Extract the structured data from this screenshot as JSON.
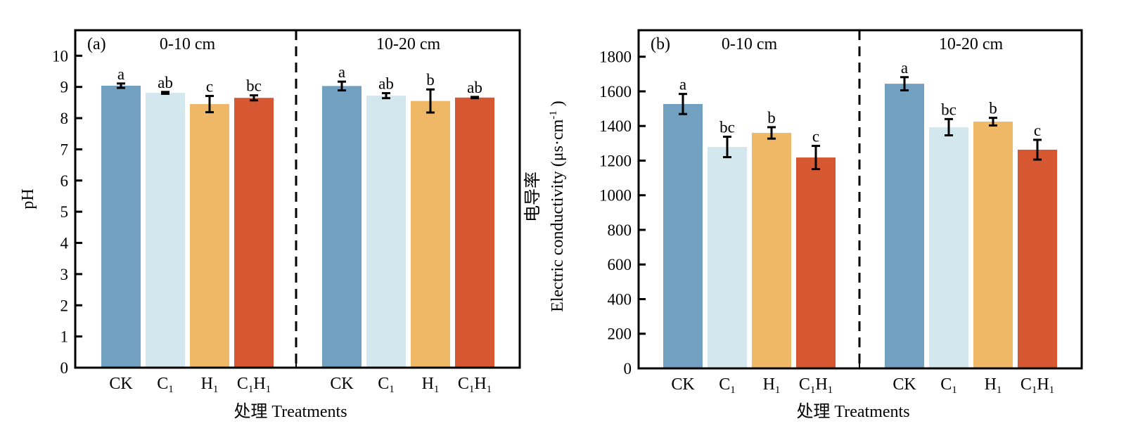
{
  "chart_data": [
    {
      "type": "bar",
      "panel_label": "(a)",
      "ylabel": "pH",
      "xlabel": "处理 Treatments",
      "ylim": [
        0,
        10
      ],
      "yticks": [
        0,
        1,
        2,
        3,
        4,
        5,
        6,
        7,
        8,
        9,
        10
      ],
      "grid": false,
      "categories": [
        {
          "main": "CK",
          "sub": "",
          "main2": "",
          "sub2": ""
        },
        {
          "main": "C",
          "sub": "1",
          "main2": "",
          "sub2": ""
        },
        {
          "main": "H",
          "sub": "1",
          "main2": "",
          "sub2": ""
        },
        {
          "main": "C",
          "sub": "1",
          "main2": "H",
          "sub2": "1"
        }
      ],
      "groups": [
        {
          "name": "0-10 cm",
          "values": [
            9.04,
            8.81,
            8.45,
            8.65
          ],
          "errors": [
            0.07,
            0.03,
            0.26,
            0.08
          ],
          "significance": [
            "a",
            "ab",
            "c",
            "bc"
          ]
        },
        {
          "name": "10-20 cm",
          "values": [
            9.03,
            8.72,
            8.55,
            8.66
          ],
          "errors": [
            0.14,
            0.08,
            0.37,
            0.02
          ],
          "significance": [
            "a",
            "ab",
            "b",
            "ab"
          ]
        }
      ]
    },
    {
      "type": "bar",
      "panel_label": "(b)",
      "ylabel": "Electric conductivity (μs·cm",
      "ylabel_sup": "-1",
      "ylabel_close": ")",
      "ylabel_cn": "电导率",
      "xlabel": "处理 Treatments",
      "ylim": [
        0,
        1800
      ],
      "yticks": [
        0,
        200,
        400,
        600,
        800,
        1000,
        1200,
        1400,
        1600,
        1800
      ],
      "grid": false,
      "categories": [
        {
          "main": "CK",
          "sub": "",
          "main2": "",
          "sub2": ""
        },
        {
          "main": "C",
          "sub": "1",
          "main2": "",
          "sub2": ""
        },
        {
          "main": "H",
          "sub": "1",
          "main2": "",
          "sub2": ""
        },
        {
          "main": "C",
          "sub": "1",
          "main2": "H",
          "sub2": "1"
        }
      ],
      "groups": [
        {
          "name": "0-10 cm",
          "values": [
            1527,
            1279,
            1360,
            1218
          ],
          "errors": [
            58,
            59,
            33,
            67
          ],
          "significance": [
            "a",
            "bc",
            "b",
            "c"
          ]
        },
        {
          "name": "10-20 cm",
          "values": [
            1644,
            1393,
            1425,
            1263
          ],
          "errors": [
            38,
            47,
            22,
            57
          ],
          "significance": [
            "a",
            "bc",
            "b",
            "c"
          ]
        }
      ]
    }
  ],
  "colors": {
    "CK": "#71a0c1",
    "C1": "#d2e8ee",
    "H1": "#eeb867",
    "C1H1": "#d65833",
    "axis": "#000000"
  }
}
